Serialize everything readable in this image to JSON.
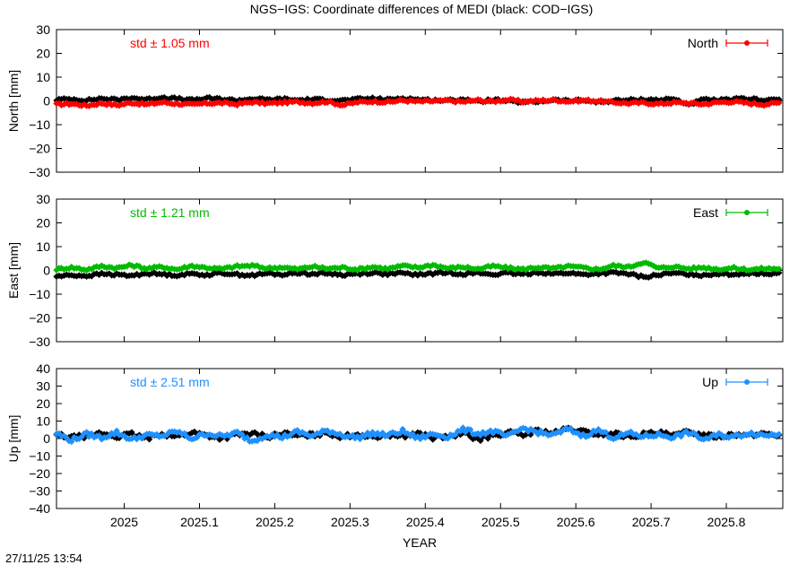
{
  "title": "NGS−IGS: Coordinate differences of MEDI (black: COD−IGS)",
  "xlabel": "YEAR",
  "timestamp": "27/11/25 13:54",
  "colors": {
    "north": "#ff0000",
    "east": "#00bb00",
    "up": "#1e90ff",
    "reference": "#000000"
  },
  "x_range": [
    2024.91,
    2025.875
  ],
  "x_ticks": [
    "2025",
    "2025.1",
    "2025.2",
    "2025.3",
    "2025.4",
    "2025.5",
    "2025.6",
    "2025.7",
    "2025.8"
  ],
  "panels": [
    {
      "id": "north",
      "ylabel": "North [mm]",
      "std_label": "std ± 1.05 mm",
      "legend": "North",
      "ylim": [
        -30,
        30
      ],
      "y_ticks": [
        "30",
        "20",
        "10",
        "0",
        "−10",
        "−20",
        "−30"
      ]
    },
    {
      "id": "east",
      "ylabel": "East [mm]",
      "std_label": "std ± 1.21 mm",
      "legend": "East",
      "ylim": [
        -30,
        30
      ],
      "y_ticks": [
        "30",
        "20",
        "10",
        "0",
        "−10",
        "−20",
        "−30"
      ]
    },
    {
      "id": "up",
      "ylabel": "Up [mm]",
      "std_label": "std ± 2.51 mm",
      "legend": "Up",
      "ylim": [
        -40,
        40
      ],
      "y_ticks": [
        "40",
        "30",
        "20",
        "10",
        "0",
        "−10",
        "−20",
        "−30",
        "−40"
      ]
    }
  ],
  "chart_data": [
    {
      "type": "line",
      "title": "NGS−IGS: Coordinate differences of MEDI (black: COD−IGS)",
      "xlabel": "YEAR",
      "ylabel": "North [mm]",
      "xlim": [
        2024.91,
        2025.875
      ],
      "ylim": [
        -30,
        30
      ],
      "x": [
        2024.91,
        2024.93,
        2024.95,
        2024.97,
        2024.99,
        2025.01,
        2025.03,
        2025.05,
        2025.07,
        2025.09,
        2025.11,
        2025.13,
        2025.15,
        2025.17,
        2025.19,
        2025.21,
        2025.23,
        2025.25,
        2025.27,
        2025.29,
        2025.31,
        2025.33,
        2025.35,
        2025.37,
        2025.39,
        2025.41,
        2025.43,
        2025.45,
        2025.47,
        2025.49,
        2025.51,
        2025.53,
        2025.55,
        2025.57,
        2025.59,
        2025.61,
        2025.63,
        2025.65,
        2025.67,
        2025.69,
        2025.71,
        2025.73,
        2025.75,
        2025.77,
        2025.79,
        2025.81,
        2025.83,
        2025.85,
        2025.87
      ],
      "series": [
        {
          "name": "North",
          "values": [
            -1.5,
            -1.2,
            -2.0,
            -1.0,
            -1.8,
            -0.8,
            -1.5,
            -0.6,
            -1.2,
            -1.6,
            -1.0,
            -0.9,
            -1.4,
            -0.5,
            -1.1,
            -0.7,
            -0.4,
            -0.9,
            -0.3,
            -1.8,
            -0.6,
            -0.2,
            -0.5,
            0.2,
            -0.3,
            -0.1,
            0.1,
            -0.4,
            0.3,
            -0.2,
            0.5,
            -0.3,
            0.1,
            0.4,
            -0.2,
            0.3,
            -0.1,
            -0.6,
            -1.0,
            -0.8,
            -1.3,
            -0.7,
            -0.9,
            -1.4,
            -0.6,
            -0.3,
            -1.0,
            -1.5,
            -0.8
          ]
        },
        {
          "values": [
            0.5,
            0.8,
            0.2,
            1.0,
            0.4,
            1.3,
            0.6,
            1.5,
            0.9,
            0.3,
            1.1,
            0.7,
            0.2,
            0.9,
            0.5,
            0.8,
            0.3,
            0.6,
            0.4,
            0.2,
            0.7,
            1.0,
            0.5,
            1.2,
            0.6,
            0.3,
            0.1,
            0.8,
            -0.4,
            0.5,
            -0.2,
            -0.6,
            -0.3,
            0.4,
            0.0,
            0.2,
            -0.5,
            0.1,
            0.3,
            0.6,
            0.4,
            0.8,
            -1.5,
            0.5,
            0.2,
            0.7,
            0.9,
            0.4,
            0.6
          ]
        }
      ]
    },
    {
      "type": "line",
      "ylabel": "East [mm]",
      "xlabel": "YEAR",
      "xlim": [
        2024.91,
        2025.875
      ],
      "ylim": [
        -30,
        30
      ],
      "x": [
        2024.91,
        2024.93,
        2024.95,
        2024.97,
        2024.99,
        2025.01,
        2025.03,
        2025.05,
        2025.07,
        2025.09,
        2025.11,
        2025.13,
        2025.15,
        2025.17,
        2025.19,
        2025.21,
        2025.23,
        2025.25,
        2025.27,
        2025.29,
        2025.31,
        2025.33,
        2025.35,
        2025.37,
        2025.39,
        2025.41,
        2025.43,
        2025.45,
        2025.47,
        2025.49,
        2025.51,
        2025.53,
        2025.55,
        2025.57,
        2025.59,
        2025.61,
        2025.63,
        2025.65,
        2025.67,
        2025.69,
        2025.71,
        2025.73,
        2025.75,
        2025.77,
        2025.79,
        2025.81,
        2025.83,
        2025.85,
        2025.87
      ],
      "series": [
        {
          "name": "East",
          "values": [
            0.5,
            1.2,
            0.3,
            1.8,
            1.0,
            2.2,
            0.8,
            1.5,
            0.4,
            1.9,
            1.1,
            0.6,
            1.7,
            2.0,
            0.9,
            1.3,
            0.5,
            1.6,
            0.8,
            1.2,
            0.4,
            1.5,
            0.7,
            1.9,
            1.2,
            2.3,
            0.9,
            1.4,
            0.6,
            1.8,
            1.0,
            0.5,
            1.3,
            0.8,
            1.7,
            1.1,
            0.4,
            2.0,
            1.4,
            3.5,
            0.9,
            1.6,
            0.7,
            1.2,
            0.5,
            1.0,
            0.3,
            0.8,
            0.6
          ]
        },
        {
          "values": [
            -2.5,
            -2.0,
            -2.3,
            -1.5,
            -1.8,
            -2.2,
            -1.2,
            -1.6,
            -2.0,
            -1.4,
            -1.9,
            -1.1,
            -1.7,
            -2.1,
            -1.3,
            -1.8,
            -1.0,
            -1.5,
            -1.2,
            -1.9,
            -1.4,
            -1.0,
            -1.6,
            -1.2,
            -1.8,
            -1.3,
            -0.9,
            -1.5,
            -1.1,
            -1.7,
            -1.2,
            -1.6,
            -0.8,
            -1.4,
            -1.1,
            -1.8,
            -1.3,
            -1.0,
            -1.5,
            -2.8,
            -1.9,
            -1.2,
            -1.6,
            -2.0,
            -1.3,
            -1.7,
            -1.1,
            -1.4,
            -1.0
          ]
        }
      ]
    },
    {
      "type": "line",
      "ylabel": "Up [mm]",
      "xlabel": "YEAR",
      "xlim": [
        2024.91,
        2025.875
      ],
      "ylim": [
        -40,
        40
      ],
      "x": [
        2024.91,
        2024.93,
        2024.95,
        2024.97,
        2024.99,
        2025.01,
        2025.03,
        2025.05,
        2025.07,
        2025.09,
        2025.11,
        2025.13,
        2025.15,
        2025.17,
        2025.19,
        2025.21,
        2025.23,
        2025.25,
        2025.27,
        2025.29,
        2025.31,
        2025.33,
        2025.35,
        2025.37,
        2025.39,
        2025.41,
        2025.43,
        2025.45,
        2025.47,
        2025.49,
        2025.51,
        2025.53,
        2025.55,
        2025.57,
        2025.59,
        2025.61,
        2025.63,
        2025.65,
        2025.67,
        2025.69,
        2025.71,
        2025.73,
        2025.75,
        2025.77,
        2025.79,
        2025.81,
        2025.83,
        2025.85,
        2025.87
      ],
      "series": [
        {
          "name": "Up",
          "values": [
            3.0,
            -1.0,
            2.5,
            0.5,
            3.5,
            -0.5,
            2.0,
            1.5,
            4.0,
            0.0,
            2.8,
            1.2,
            3.2,
            -1.5,
            2.2,
            0.8,
            3.8,
            1.5,
            4.5,
            2.0,
            0.5,
            3.0,
            1.8,
            4.2,
            0.2,
            2.5,
            1.0,
            5.0,
            2.8,
            4.0,
            1.2,
            6.0,
            3.5,
            2.0,
            5.5,
            1.5,
            4.8,
            0.5,
            3.0,
            1.2,
            2.2,
            0.8,
            3.5,
            -0.5,
            2.0,
            1.0,
            3.2,
            2.0,
            2.5
          ]
        },
        {
          "values": [
            2.0,
            0.5,
            1.5,
            3.0,
            1.0,
            2.5,
            0.0,
            2.8,
            1.2,
            3.5,
            1.8,
            0.2,
            2.2,
            2.8,
            1.0,
            3.0,
            1.5,
            2.0,
            3.2,
            1.0,
            2.5,
            0.8,
            2.2,
            1.5,
            3.0,
            0.5,
            1.0,
            2.8,
            -0.5,
            1.8,
            3.5,
            2.0,
            4.5,
            3.0,
            5.5,
            3.8,
            2.5,
            3.0,
            1.0,
            2.5,
            3.2,
            1.5,
            4.0,
            2.0,
            1.2,
            2.8,
            1.5,
            3.0,
            2.0
          ]
        }
      ]
    }
  ]
}
